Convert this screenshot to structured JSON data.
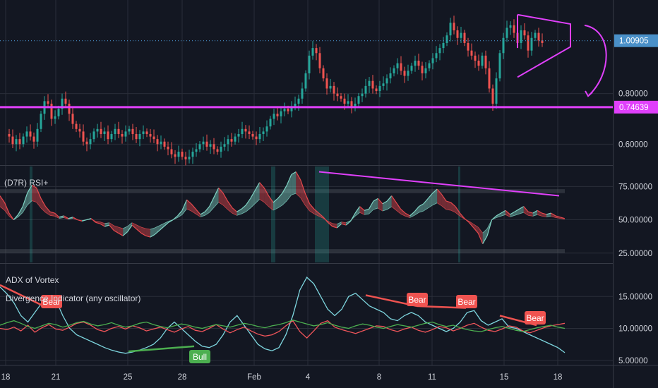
{
  "chart_data": [
    {
      "type": "candlestick",
      "title": "",
      "y_ticks": [
        "0.60000",
        "0.80000"
      ],
      "ylim": [
        0.52,
        1.17
      ],
      "price_labels": [
        {
          "text": "1.00905",
          "value": 1.00905,
          "color": "#4a90c8",
          "line": "dotted"
        },
        {
          "text": "0.74639",
          "value": 0.74639,
          "color": "#e040fb",
          "line": "solid"
        }
      ],
      "x_ticks": [
        "18",
        "21",
        "25",
        "28",
        "Feb",
        "4",
        "8",
        "11",
        "15",
        "18"
      ],
      "annotations": [
        "horizontal support line at 0.74639",
        "symmetrical triangle",
        "arrow pointing down"
      ],
      "close_path": [
        0.64,
        0.63,
        0.6,
        0.62,
        0.6,
        0.63,
        0.65,
        0.63,
        0.61,
        0.66,
        0.72,
        0.77,
        0.76,
        0.7,
        0.71,
        0.74,
        0.78,
        0.76,
        0.72,
        0.68,
        0.66,
        0.65,
        0.61,
        0.6,
        0.62,
        0.65,
        0.66,
        0.64,
        0.65,
        0.62,
        0.64,
        0.66,
        0.64,
        0.63,
        0.65,
        0.66,
        0.64,
        0.62,
        0.64,
        0.65,
        0.64,
        0.63,
        0.62,
        0.6,
        0.61,
        0.59,
        0.58,
        0.56,
        0.55,
        0.57,
        0.55,
        0.54,
        0.55,
        0.57,
        0.58,
        0.6,
        0.61,
        0.59,
        0.6,
        0.58,
        0.57,
        0.59,
        0.6,
        0.62,
        0.61,
        0.63,
        0.64,
        0.66,
        0.65,
        0.64,
        0.63,
        0.62,
        0.64,
        0.65,
        0.67,
        0.7,
        0.72,
        0.71,
        0.73,
        0.74,
        0.73,
        0.75,
        0.76,
        0.78,
        0.82,
        0.88,
        0.95,
        0.98,
        0.96,
        0.9,
        0.86,
        0.82,
        0.83,
        0.8,
        0.79,
        0.78,
        0.76,
        0.77,
        0.75,
        0.76,
        0.79,
        0.8,
        0.83,
        0.85,
        0.82,
        0.81,
        0.83,
        0.84,
        0.86,
        0.88,
        0.9,
        0.92,
        0.89,
        0.87,
        0.89,
        0.91,
        0.93,
        0.91,
        0.88,
        0.9,
        0.92,
        0.94,
        0.96,
        0.98,
        1.0,
        1.03,
        1.08,
        1.05,
        1.02,
        1.04,
        1.0,
        0.97,
        0.95,
        0.93,
        0.91,
        0.95,
        0.9,
        0.82,
        0.76,
        0.86,
        0.96,
        1.02,
        1.06,
        1.07,
        1.04,
        1.0,
        1.05,
        1.03,
        0.97,
        1.02,
        1.04,
        1.01,
        1.0
      ]
    },
    {
      "type": "line",
      "title": "(D7R) RSI+",
      "y_ticks": [
        "25.00000",
        "50.00000",
        "75.00000"
      ],
      "ylim": [
        18,
        90
      ],
      "bands": [
        [
          25,
          28
        ],
        [
          70,
          73
        ]
      ],
      "values": [
        68,
        63,
        55,
        50,
        54,
        60,
        70,
        76,
        74,
        66,
        60,
        56,
        55,
        52,
        53,
        51,
        52,
        50,
        49,
        50,
        51,
        48,
        47,
        45,
        46,
        42,
        40,
        38,
        41,
        46,
        43,
        40,
        38,
        37,
        39,
        42,
        45,
        48,
        50,
        53,
        57,
        65,
        62,
        58,
        54,
        56,
        60,
        67,
        74,
        70,
        64,
        59,
        56,
        58,
        61,
        66,
        72,
        78,
        74,
        68,
        63,
        66,
        70,
        76,
        84,
        86,
        80,
        70,
        62,
        58,
        55,
        52,
        48,
        45,
        44,
        47,
        46,
        49,
        55,
        60,
        57,
        58,
        64,
        66,
        62,
        64,
        68,
        63,
        58,
        55,
        53,
        56,
        60,
        62,
        66,
        70,
        73,
        69,
        64,
        63,
        60,
        55,
        51,
        48,
        44,
        40,
        32,
        38,
        50,
        53,
        55,
        57,
        54,
        56,
        58,
        60,
        56,
        55,
        57,
        55,
        54,
        55,
        53,
        52,
        51
      ]
    },
    {
      "type": "line",
      "title": "ADX of Vortex",
      "subtitle": "Divergence Indicator (any oscillator)",
      "y_ticks": [
        "5.00000",
        "10.00000",
        "15.00000"
      ],
      "ylim": [
        4.2,
        20
      ],
      "series": [
        {
          "color": "#7ed6df",
          "values": [
            16.5,
            15.4,
            14,
            12,
            11,
            12.5,
            14,
            15,
            14.5,
            12,
            10,
            9,
            8.5,
            8,
            7.5,
            7,
            6.6,
            6.3,
            6.1,
            6.3,
            6.6,
            7,
            7.5,
            8.5,
            10,
            11,
            10,
            9,
            8,
            7.2,
            7,
            7.5,
            9,
            11,
            12,
            10.5,
            9,
            7.5,
            6.8,
            6.5,
            7,
            9,
            12,
            16,
            18,
            17,
            15,
            13,
            12,
            13,
            15,
            15.5,
            14.5,
            13.5,
            13,
            12.5,
            11.5,
            11.2,
            12,
            12.5,
            12,
            11,
            10.5,
            10,
            9.5,
            10,
            11,
            12.5,
            12.8,
            11.2,
            10.5,
            11,
            11.5,
            10.2,
            10,
            9.5,
            9,
            8.5,
            8,
            7.5,
            7,
            6.2
          ]
        },
        {
          "color": "#f0555a",
          "values": [
            10,
            9.8,
            10.2,
            9.6,
            10.5,
            9.4,
            10.1,
            10.6,
            9.9,
            9.7,
            10.2,
            10.8,
            11,
            10.5,
            9.8,
            9.5,
            10,
            10.3,
            9.9,
            10.4,
            10.1,
            9.6,
            9.9,
            10.2,
            9.8,
            9.4,
            9.9,
            10.3,
            9.7,
            9.5,
            10,
            10.6,
            9.9,
            9.3,
            9.8,
            10.2,
            9.6,
            9.1,
            8.8,
            9,
            9.5,
            10.4,
            11.2,
            9.5,
            8.5,
            9.6,
            10.8,
            11.2,
            10.2,
            9.8,
            9.5,
            9.2,
            9.6,
            10,
            10.4,
            10.3,
            9.8,
            9.5,
            9.9,
            10.2,
            9.7,
            9.4,
            9.8,
            10.3,
            10.1,
            9.6,
            10,
            10.5,
            10.8,
            10.2,
            9.7,
            9.5,
            9.9,
            10.4,
            10.2,
            9.6,
            9.3,
            9.7,
            10.1,
            10.4,
            10.6,
            10.8
          ]
        },
        {
          "color": "#4caf50",
          "values": [
            10.5,
            10.9,
            11.2,
            10.8,
            10.3,
            10,
            10.4,
            10.8,
            10.6,
            10.2,
            10.5,
            10.9,
            11.1,
            10.7,
            10.4,
            10.6,
            10.9,
            10.5,
            10.2,
            10.4,
            10.8,
            11,
            10.6,
            10.3,
            10.1,
            10.4,
            10.7,
            10.5,
            10.2,
            10,
            10.3,
            10.6,
            10.4,
            10.2,
            10.5,
            10.8,
            10.6,
            10.3,
            10.1,
            10.4,
            10.6,
            10.9,
            11.3,
            11,
            10.7,
            10.4,
            10.6,
            10.9,
            10.5,
            10.2,
            10,
            10.4,
            10.7,
            10.5,
            10.2,
            10,
            10.3,
            10.6,
            10.4,
            10.2,
            10.5,
            10.8,
            11,
            10.6,
            10.3,
            10.5,
            10.1,
            9.8,
            9.6,
            9.5,
            9.8,
            10.1,
            10.3,
            10,
            9.7,
            9.5,
            9.8,
            10.1,
            10.3,
            10.5,
            10.2,
            10
          ]
        }
      ],
      "divergence_labels": [
        {
          "text": "Bear",
          "type": "bear"
        },
        {
          "text": "Bull",
          "type": "bull"
        },
        {
          "text": "Bear",
          "type": "bear"
        },
        {
          "text": "Bear",
          "type": "bear"
        },
        {
          "text": "Bear",
          "type": "bear"
        }
      ]
    }
  ],
  "colors": {
    "background": "#131722",
    "grid": "#2a2e39",
    "up": "#26a69a",
    "down": "#ef5350",
    "magenta": "#e040fb",
    "rsi_up": "#7fd3c4",
    "rsi_down": "#e5484d",
    "bear_badge": "#ef5350",
    "bull_badge": "#4caf50"
  }
}
